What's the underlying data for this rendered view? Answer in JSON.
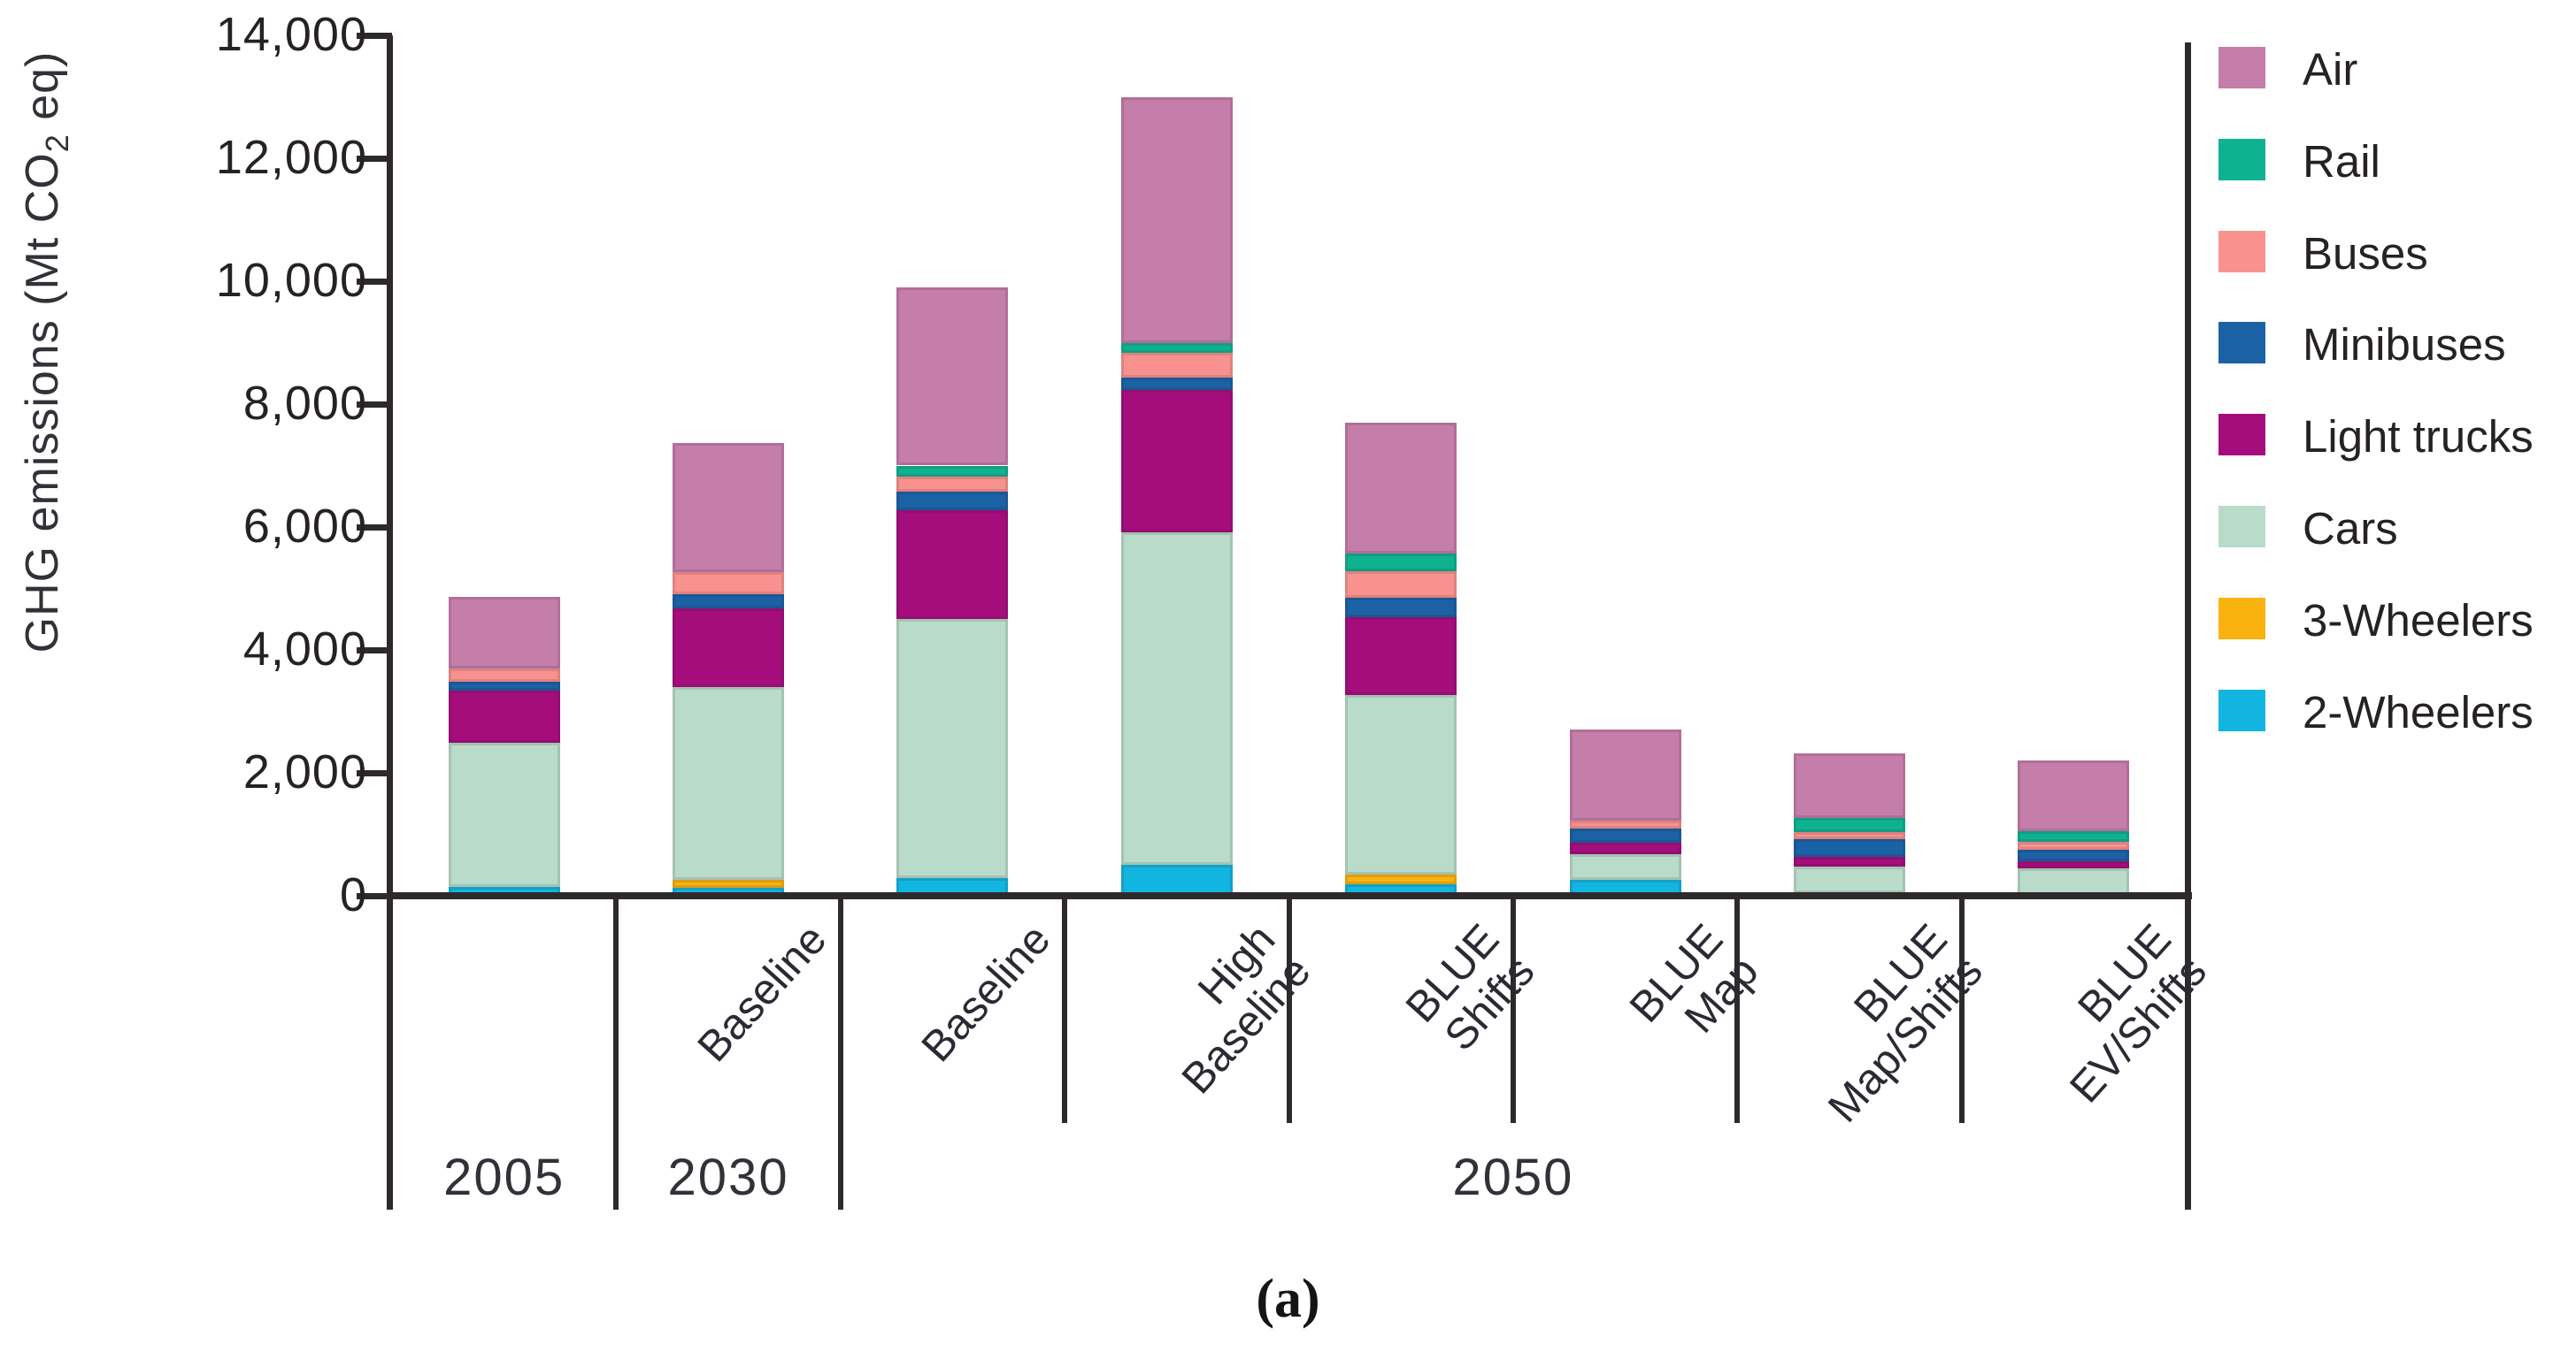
{
  "figure": {
    "caption": "(a)",
    "background": "#ffffff"
  },
  "y_axis": {
    "title_prefix": "GHG emissions (Mt CO",
    "title_sub": "2",
    "title_suffix": " eq)",
    "tick_labels": [
      "14,000",
      "12,000",
      "10,000",
      "8,000",
      "6,000",
      "4,000",
      "2,000",
      "0"
    ],
    "min": 0,
    "max": 14000,
    "tick_step": 2000
  },
  "x_axis": {
    "column_labels": [
      [],
      [
        "Baseline"
      ],
      [
        "Baseline"
      ],
      [
        "High",
        "Baseline"
      ],
      [
        "BLUE",
        "Shifts"
      ],
      [
        "BLUE",
        "Map"
      ],
      [
        "BLUE",
        "Map/Shifts"
      ],
      [
        "BLUE",
        "EV/Shifts"
      ]
    ],
    "year_labels": [
      {
        "label": "2005",
        "cells": [
          0,
          1
        ]
      },
      {
        "label": "2030",
        "cells": [
          1,
          2
        ]
      },
      {
        "label": "2050",
        "cells": [
          2,
          8
        ]
      }
    ]
  },
  "legend": {
    "items": [
      {
        "label": "Air",
        "color": "#c57daa"
      },
      {
        "label": "Rail",
        "color": "#0fb290"
      },
      {
        "label": "Buses",
        "color": "#f9928f"
      },
      {
        "label": "Minibuses",
        "color": "#1b61a5"
      },
      {
        "label": "Light trucks",
        "color": "#a50d7c"
      },
      {
        "label": "Cars",
        "color": "#b9dcca"
      },
      {
        "label": "3-Wheelers",
        "color": "#f9b20e"
      },
      {
        "label": "2-Wheelers",
        "color": "#12b5e0"
      }
    ]
  },
  "chart_data": {
    "type": "bar",
    "stacked": true,
    "title": "",
    "xlabel": "",
    "ylabel": "GHG emissions (Mt CO2 eq)",
    "ylim": [
      0,
      14000
    ],
    "grid": false,
    "legend_position": "right",
    "categories": [
      "2005",
      "2030 Baseline",
      "2050 Baseline",
      "2050 High Baseline",
      "2050 BLUE Shifts",
      "2050 BLUE Map",
      "2050 BLUE Map/Shifts",
      "2050 BLUE EV/Shifts"
    ],
    "stack_order": "bottom-to-top",
    "series": [
      {
        "name": "2-Wheelers",
        "color": "#12b5e0",
        "values": [
          150,
          130,
          290,
          500,
          190,
          260,
          50,
          0
        ]
      },
      {
        "name": "3-Wheelers",
        "color": "#f9b20e",
        "values": [
          0,
          130,
          0,
          0,
          160,
          0,
          0,
          0
        ]
      },
      {
        "name": "Cars",
        "color": "#b9dcca",
        "values": [
          2340,
          3140,
          4210,
          5420,
          2920,
          410,
          430,
          440
        ]
      },
      {
        "name": "Light trucks",
        "color": "#a50d7c",
        "values": [
          850,
          1280,
          1780,
          2310,
          1260,
          190,
          160,
          120
        ]
      },
      {
        "name": "Minibuses",
        "color": "#1b61a5",
        "values": [
          140,
          220,
          290,
          200,
          320,
          240,
          280,
          190
        ]
      },
      {
        "name": "Buses",
        "color": "#f9928f",
        "values": [
          220,
          360,
          250,
          400,
          430,
          130,
          120,
          130
        ]
      },
      {
        "name": "Rail",
        "color": "#0fb290",
        "values": [
          0,
          0,
          180,
          170,
          290,
          0,
          220,
          170
        ]
      },
      {
        "name": "Air",
        "color": "#c57daa",
        "values": [
          1160,
          2110,
          2900,
          4000,
          2130,
          1470,
          1060,
          1150
        ]
      }
    ],
    "totals": [
      4860,
      7370,
      9900,
      13000,
      7700,
      2700,
      2320,
      2200
    ]
  }
}
